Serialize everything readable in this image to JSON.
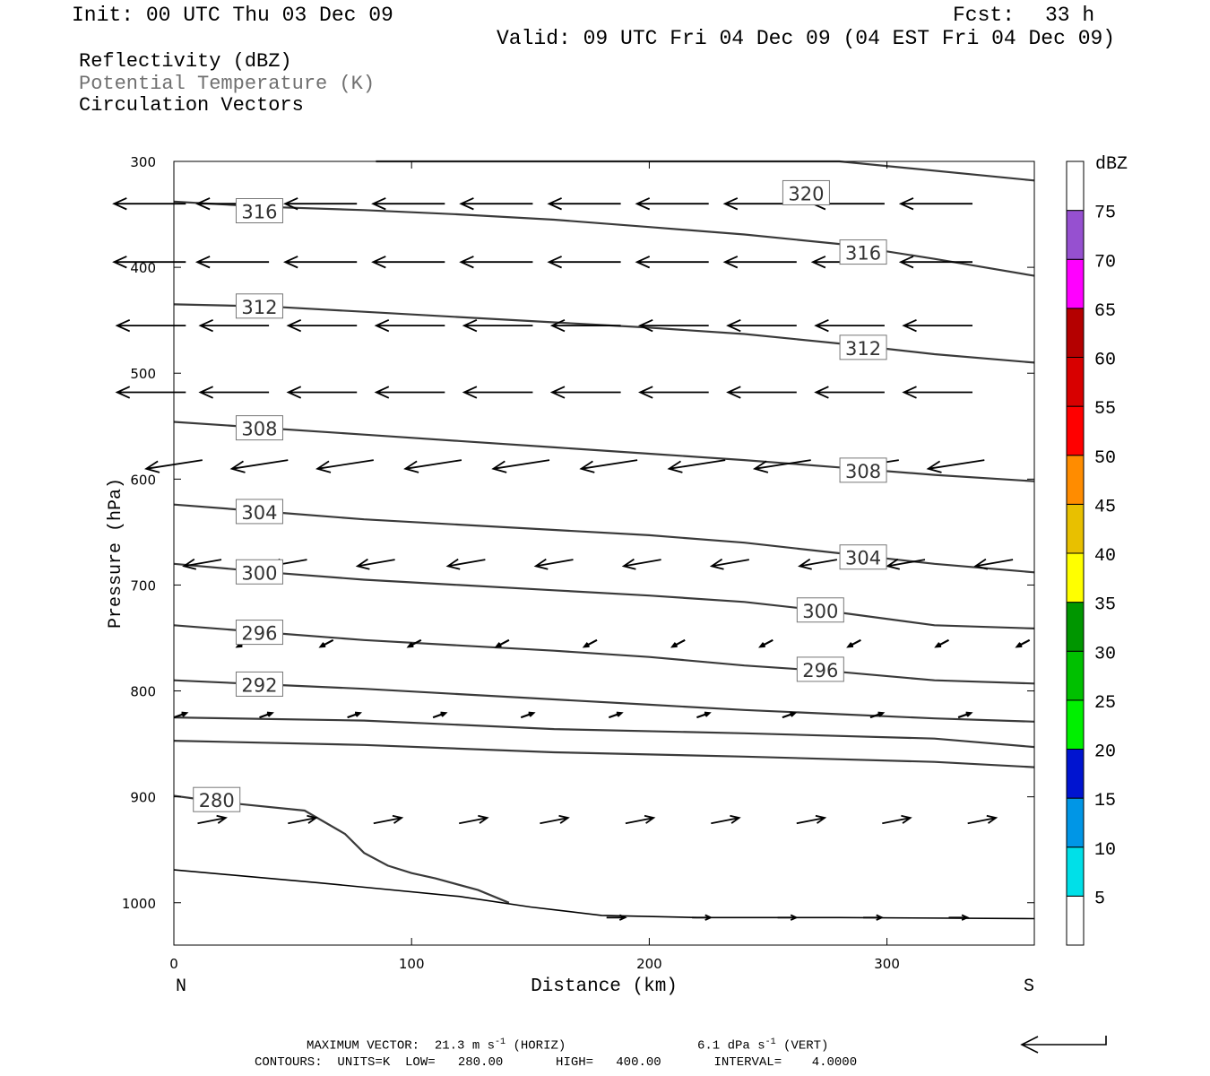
{
  "header": {
    "init": "Init: 00 UTC Thu 03 Dec 09",
    "fcst_label": "Fcst:",
    "fcst_value": "33 h",
    "valid": "Valid: 09 UTC Fri 04 Dec 09 (04 EST Fri 04 Dec 09)"
  },
  "legend_lines": [
    {
      "text": "Reflectivity (dBZ)",
      "color": "#000000"
    },
    {
      "text": "Potential Temperature (K)",
      "color": "#707070"
    },
    {
      "text": "Circulation Vectors",
      "color": "#000000"
    }
  ],
  "chart_data": {
    "type": "contour_cross_section",
    "xlabel": "Distance (km)",
    "ylabel": "Pressure (hPa)",
    "x_range": [
      0,
      362
    ],
    "y_range": [
      300,
      1040
    ],
    "x_ticks": [
      0,
      100,
      200,
      300
    ],
    "y_ticks": [
      300,
      400,
      500,
      600,
      700,
      800,
      900,
      1000
    ],
    "x_end_labels": {
      "left": "N",
      "right": "S"
    },
    "contours": [
      {
        "label": "320",
        "points": [
          [
            85,
            300
          ],
          [
            280,
            300
          ],
          [
            362,
            318
          ]
        ],
        "label_at": [
          266,
          330
        ]
      },
      {
        "label": "316",
        "points": [
          [
            0,
            338
          ],
          [
            40,
            343
          ],
          [
            80,
            346
          ],
          [
            120,
            350
          ],
          [
            160,
            355
          ],
          [
            200,
            362
          ],
          [
            240,
            369
          ],
          [
            280,
            378
          ],
          [
            320,
            392
          ],
          [
            362,
            408
          ]
        ],
        "label_at": [
          36,
          347
        ],
        "label_at2": [
          290,
          386
        ]
      },
      {
        "label": "312",
        "points": [
          [
            0,
            435
          ],
          [
            40,
            437
          ],
          [
            80,
            442
          ],
          [
            120,
            447
          ],
          [
            160,
            452
          ],
          [
            200,
            457
          ],
          [
            240,
            463
          ],
          [
            280,
            472
          ],
          [
            320,
            482
          ],
          [
            362,
            490
          ]
        ],
        "label_at": [
          36,
          437
        ],
        "label_at2": [
          290,
          476
        ]
      },
      {
        "label": "308",
        "points": [
          [
            0,
            546
          ],
          [
            40,
            552
          ],
          [
            80,
            558
          ],
          [
            120,
            564
          ],
          [
            160,
            570
          ],
          [
            200,
            576
          ],
          [
            240,
            582
          ],
          [
            280,
            589
          ],
          [
            320,
            596
          ],
          [
            362,
            602
          ]
        ],
        "label_at": [
          36,
          552
        ],
        "label_at2": [
          290,
          592
        ]
      },
      {
        "label": "304",
        "points": [
          [
            0,
            624
          ],
          [
            40,
            631
          ],
          [
            80,
            638
          ],
          [
            120,
            643
          ],
          [
            160,
            648
          ],
          [
            200,
            653
          ],
          [
            240,
            660
          ],
          [
            280,
            670
          ],
          [
            320,
            680
          ],
          [
            362,
            688
          ]
        ],
        "label_at": [
          36,
          631
        ],
        "label_at2": [
          290,
          674
        ]
      },
      {
        "label": "300",
        "points": [
          [
            0,
            680
          ],
          [
            40,
            688
          ],
          [
            80,
            695
          ],
          [
            120,
            700
          ],
          [
            160,
            705
          ],
          [
            200,
            710
          ],
          [
            240,
            716
          ],
          [
            280,
            726
          ],
          [
            320,
            738
          ],
          [
            362,
            741
          ]
        ],
        "label_at": [
          36,
          688
        ],
        "label_at2": [
          272,
          724
        ]
      },
      {
        "label": "296",
        "points": [
          [
            0,
            738
          ],
          [
            40,
            745
          ],
          [
            80,
            752
          ],
          [
            120,
            757
          ],
          [
            160,
            762
          ],
          [
            200,
            768
          ],
          [
            240,
            776
          ],
          [
            280,
            782
          ],
          [
            320,
            790
          ],
          [
            362,
            793
          ]
        ],
        "label_at": [
          36,
          745
        ],
        "label_at2": [
          272,
          780
        ]
      },
      {
        "label": "292",
        "points": [
          [
            0,
            790
          ],
          [
            40,
            794
          ],
          [
            80,
            798
          ],
          [
            120,
            803
          ],
          [
            160,
            808
          ],
          [
            200,
            813
          ],
          [
            240,
            818
          ],
          [
            280,
            822
          ],
          [
            320,
            826
          ],
          [
            362,
            829
          ]
        ],
        "label_at": [
          36,
          794
        ]
      },
      {
        "label": "",
        "points": [
          [
            0,
            825
          ],
          [
            80,
            828
          ],
          [
            160,
            836
          ],
          [
            240,
            840
          ],
          [
            320,
            845
          ],
          [
            362,
            853
          ]
        ]
      },
      {
        "label": "",
        "points": [
          [
            0,
            847
          ],
          [
            80,
            851
          ],
          [
            160,
            858
          ],
          [
            240,
            862
          ],
          [
            320,
            867
          ],
          [
            362,
            872
          ]
        ]
      },
      {
        "label": "280",
        "points": [
          [
            0,
            899
          ],
          [
            20,
            905
          ],
          [
            55,
            913
          ],
          [
            72,
            935
          ],
          [
            80,
            953
          ],
          [
            90,
            965
          ],
          [
            100,
            972
          ],
          [
            110,
            977
          ],
          [
            128,
            988
          ],
          [
            141,
            1000
          ]
        ],
        "label_at": [
          18,
          903
        ]
      }
    ],
    "ground": {
      "points": [
        [
          0,
          969
        ],
        [
          60,
          981
        ],
        [
          120,
          994
        ],
        [
          150,
          1004
        ],
        [
          180,
          1012
        ],
        [
          220,
          1014
        ],
        [
          280,
          1014
        ],
        [
          362,
          1015
        ]
      ]
    },
    "vector_rows": [
      {
        "p": 340,
        "u": -23,
        "w": 0,
        "xs": [
          5,
          40,
          77,
          114,
          151,
          188,
          225,
          262,
          299,
          336
        ]
      },
      {
        "p": 395,
        "u": -23,
        "w": 0,
        "xs": [
          5,
          40,
          77,
          114,
          151,
          188,
          225,
          262,
          299,
          336
        ]
      },
      {
        "p": 455,
        "u": -22,
        "w": 0,
        "xs": [
          5,
          40,
          77,
          114,
          151,
          188,
          225,
          262,
          299,
          336
        ]
      },
      {
        "p": 518,
        "u": -22,
        "w": 0,
        "xs": [
          5,
          40,
          77,
          114,
          151,
          188,
          225,
          262,
          299,
          336
        ]
      },
      {
        "p": 582,
        "u": -18,
        "w": -8,
        "xs": [
          12,
          48,
          84,
          121,
          158,
          195,
          232,
          268,
          305,
          341
        ]
      },
      {
        "p": 676,
        "u": -12,
        "w": -6,
        "xs": [
          20,
          56,
          93,
          131,
          168,
          205,
          242,
          279,
          316,
          353
        ]
      },
      {
        "p": 752,
        "u": -4,
        "w": -6,
        "xs": [
          32,
          67,
          104,
          141,
          178,
          215,
          252,
          289,
          326,
          360
        ]
      },
      {
        "p": 825,
        "u": 4,
        "w": 4,
        "xs": [
          0,
          36,
          73,
          109,
          146,
          183,
          220,
          256,
          293,
          330
        ]
      },
      {
        "p": 925,
        "u": 9,
        "w": 5,
        "xs": [
          10,
          48,
          84,
          120,
          154,
          190,
          226,
          262,
          298,
          334
        ]
      },
      {
        "p": 1014,
        "u": 6,
        "w": 0,
        "xs": [
          182,
          218,
          254,
          290,
          326
        ]
      }
    ],
    "colorbar": {
      "unit": "dBZ",
      "levels": [
        "5",
        "10",
        "15",
        "20",
        "25",
        "30",
        "35",
        "40",
        "45",
        "50",
        "55",
        "60",
        "65",
        "70",
        "75"
      ],
      "colors": [
        "#ffffff",
        "#00e0e8",
        "#0096e6",
        "#0014d0",
        "#00f000",
        "#00c000",
        "#009600",
        "#ffff00",
        "#e8c000",
        "#ff8c00",
        "#ff0000",
        "#d80000",
        "#b40000",
        "#ff00ff",
        "#9650d0",
        "#ffffff"
      ]
    }
  },
  "footer": {
    "max_vector": "MAXIMUM VECTOR:  21.3 m s",
    "max_vector_sup": "-1",
    "horiz": "(HORIZ)",
    "vert_val": "6.1 dPa s",
    "vert_sup": "-1",
    "vert": "(VERT)",
    "contours": "CONTOURS:  UNITS=K  LOW=   280.00       HIGH=   400.00       INTERVAL=    4.0000"
  }
}
